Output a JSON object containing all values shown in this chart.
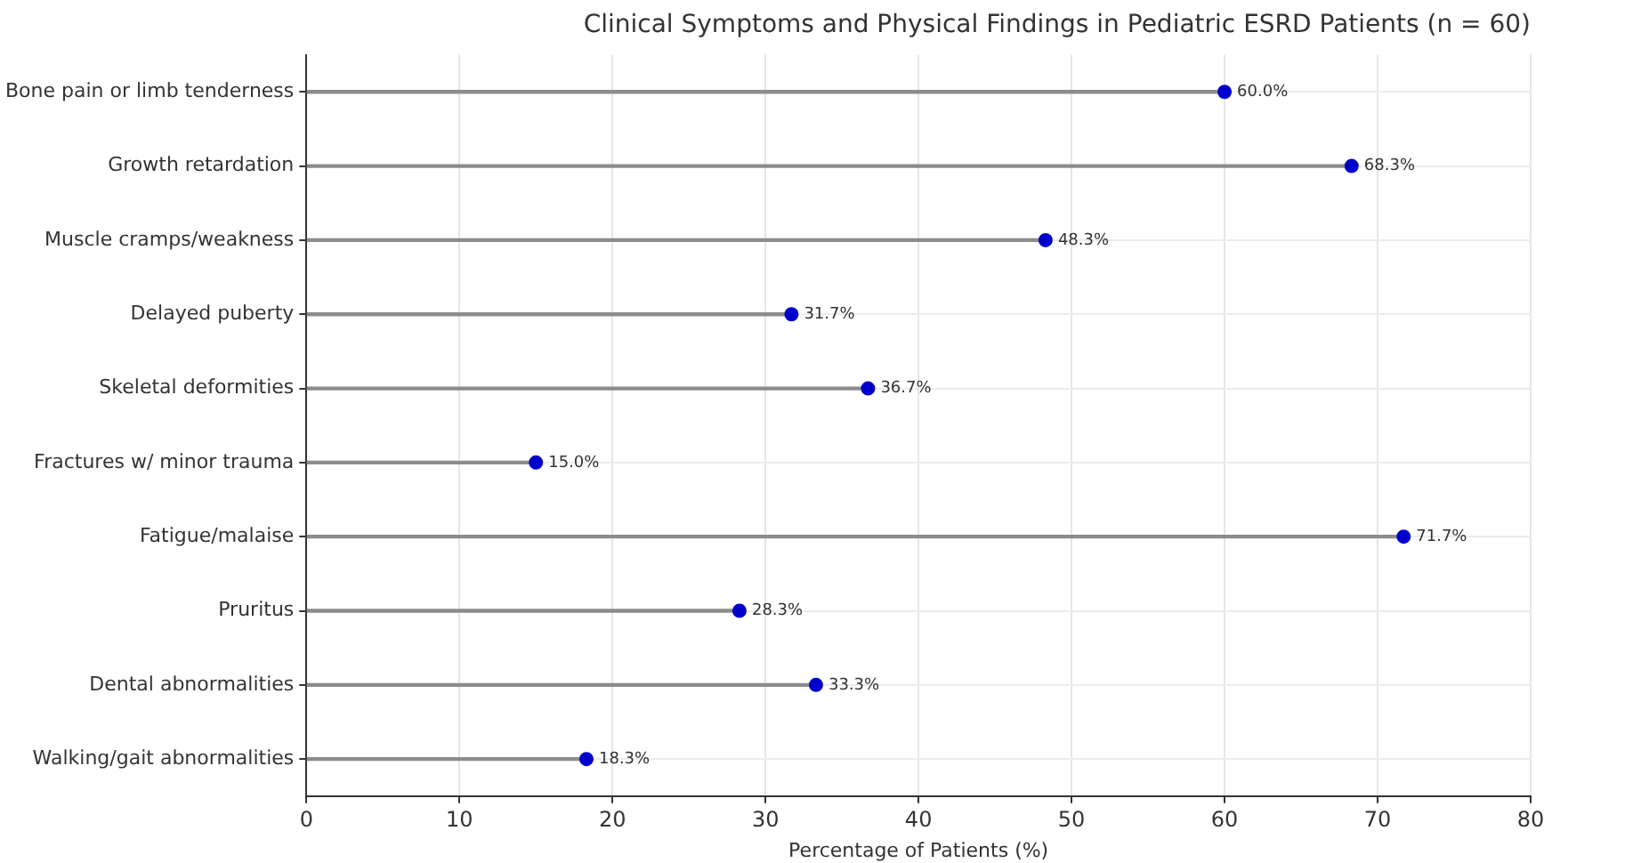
{
  "chart_data": {
    "type": "lollipop",
    "orientation": "horizontal",
    "title": "Clinical Symptoms and Physical Findings in Pediatric ESRD Patients (n = 60)",
    "xlabel": "Percentage of Patients (%)",
    "categories": [
      "Bone pain or limb tenderness",
      "Growth retardation",
      "Muscle cramps/weakness",
      "Delayed puberty",
      "Skeletal deformities",
      "Fractures w/ minor trauma",
      "Fatigue/malaise",
      "Pruritus",
      "Dental abnormalities",
      "Walking/gait abnormalities"
    ],
    "values": [
      60.0,
      68.3,
      48.3,
      31.7,
      36.7,
      15.0,
      71.7,
      28.3,
      33.3,
      18.3
    ],
    "value_labels": [
      "60.0%",
      "68.3%",
      "48.3%",
      "31.7%",
      "36.7%",
      "15.0%",
      "71.7%",
      "28.3%",
      "33.3%",
      "18.3%"
    ],
    "color": "#0000cc",
    "xlim": [
      0,
      80
    ],
    "xticks": [
      0,
      10,
      20,
      30,
      40,
      50,
      60,
      70,
      80
    ],
    "grid": true,
    "marker": "circle"
  }
}
